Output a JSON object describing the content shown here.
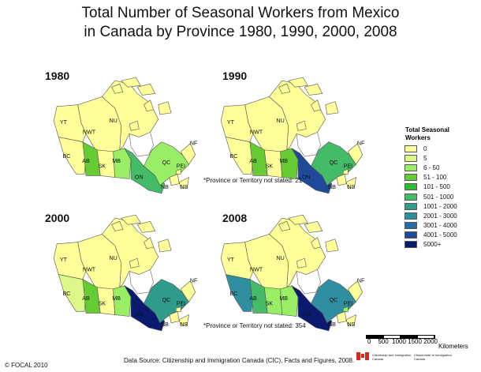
{
  "title_line1": "Total Number of Seasonal Workers from Mexico",
  "title_line2": "in Canada by Province 1980, 1990, 2000, 2008",
  "maps": [
    {
      "year": "1980",
      "fills": {
        "YT": "#ffff99",
        "NWT": "#ffff99",
        "NU": "#ffff99",
        "BC": "#ffff99",
        "AB": "#66cc33",
        "SK": "#ffff99",
        "MB": "#99ee66",
        "ON": "#44bb66",
        "QC": "#99ee66",
        "NF": "#ffff99",
        "NB": "#ffff99",
        "NS": "#ffff99",
        "PEI": "#ffff99"
      },
      "note": "*Province or Territory not stated: 21"
    },
    {
      "year": "1990",
      "fills": {
        "YT": "#ffff99",
        "NWT": "#ffff99",
        "NU": "#ffff99",
        "BC": "#ffff99",
        "AB": "#66cc33",
        "SK": "#ffff99",
        "MB": "#66cc33",
        "ON": "#1f4a99",
        "QC": "#44bb66",
        "NF": "#ffff99",
        "NB": "#ffff99",
        "NS": "#ffff99",
        "PEI": "#ffff99"
      },
      "note": ""
    },
    {
      "year": "2000",
      "fills": {
        "YT": "#ffff99",
        "NWT": "#ffff99",
        "NU": "#ffff99",
        "BC": "#ddf788",
        "AB": "#66cc33",
        "SK": "#ffff99",
        "MB": "#99ee66",
        "ON": "#0a1a6e",
        "QC": "#2e9b8b",
        "NF": "#ffff99",
        "NB": "#ffff99",
        "NS": "#ffff99",
        "PEI": "#ffff99"
      },
      "note": "*Province or Territory not stated: 354"
    },
    {
      "year": "2008",
      "fills": {
        "YT": "#ffff99",
        "NWT": "#ffff99",
        "NU": "#ffff99",
        "BC": "#2f8fa0",
        "AB": "#44bb66",
        "SK": "#99ee66",
        "MB": "#99ee66",
        "ON": "#0a1a6e",
        "QC": "#2f8fa0",
        "NF": "#ffff99",
        "NB": "#ffff99",
        "NS": "#ffff99",
        "PEI": "#99ee66"
      },
      "note": ""
    }
  ],
  "legend": {
    "title": "Total Seasonal Workers",
    "items": [
      {
        "label": "0",
        "color": "#ffff99"
      },
      {
        "label": "5",
        "color": "#ddf788"
      },
      {
        "label": "6 - 50",
        "color": "#99ee66"
      },
      {
        "label": "51 - 100",
        "color": "#66cc33"
      },
      {
        "label": "101 - 500",
        "color": "#33bb33"
      },
      {
        "label": "501 - 1000",
        "color": "#44bb66"
      },
      {
        "label": "1001 - 2000",
        "color": "#2e9b8b"
      },
      {
        "label": "2001 - 3000",
        "color": "#2f8fa0"
      },
      {
        "label": "3001 - 4000",
        "color": "#2a6aa5"
      },
      {
        "label": "4001 - 5000",
        "color": "#1f4a99"
      },
      {
        "label": "5000+",
        "color": "#0a1a6e"
      }
    ]
  },
  "scale": {
    "labels": "0    500  1000 1500 2000",
    "unit": "Kilometers"
  },
  "copyright": "© FOCAL 2010",
  "source": "Data Source:  Citizenship and Immigration Canada (CIC), Facts and Figures, 2008.",
  "cic_en": "Citizenship and Immigration Canada",
  "cic_fr": "Citoyenneté et Immigration Canada"
}
